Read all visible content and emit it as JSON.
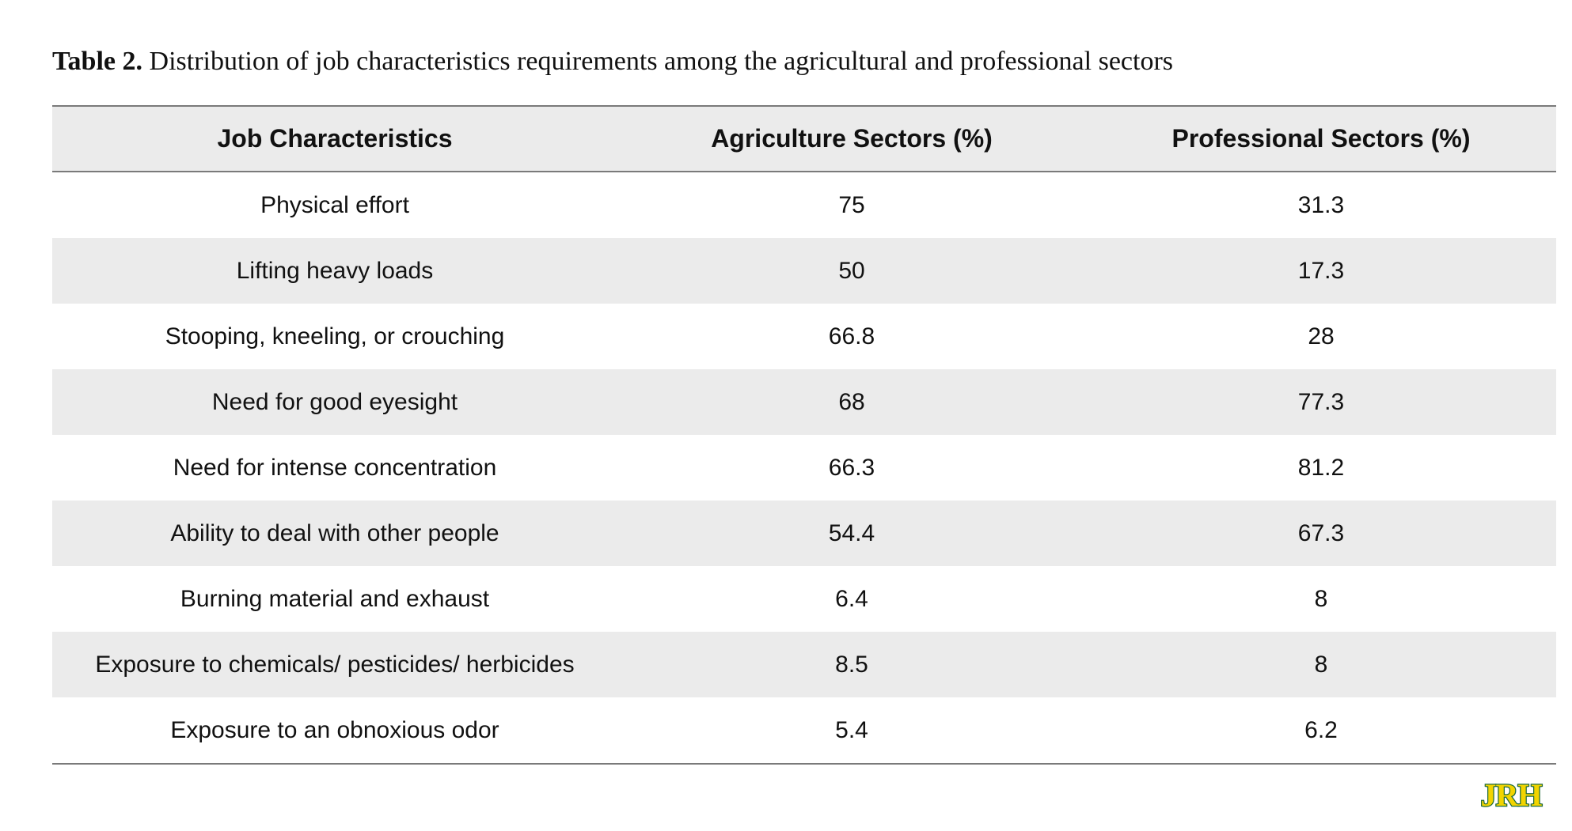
{
  "caption": {
    "label": "Table 2.",
    "text": "Distribution of job characteristics requirements among the agricultural and professional sectors"
  },
  "table": {
    "headers": [
      "Job Characteristics",
      "Agriculture Sectors (%)",
      "Professional Sectors (%)"
    ],
    "rows": [
      [
        "Physical effort",
        "75",
        "31.3"
      ],
      [
        "Lifting heavy loads",
        "50",
        "17.3"
      ],
      [
        "Stooping, kneeling, or crouching",
        "66.8",
        "28"
      ],
      [
        "Need for good eyesight",
        "68",
        "77.3"
      ],
      [
        "Need for intense concentration",
        "66.3",
        "81.2"
      ],
      [
        "Ability to deal with other people",
        "54.4",
        "67.3"
      ],
      [
        "Burning material and exhaust",
        "6.4",
        "8"
      ],
      [
        "Exposure to chemicals/ pesticides/ herbicides",
        "8.5",
        "8"
      ],
      [
        "Exposure to an obnoxious odor",
        "5.4",
        "6.2"
      ]
    ]
  },
  "logo": {
    "text": "JRH",
    "fill_color": "#f2d400",
    "outline_color": "#1f6b3a"
  }
}
